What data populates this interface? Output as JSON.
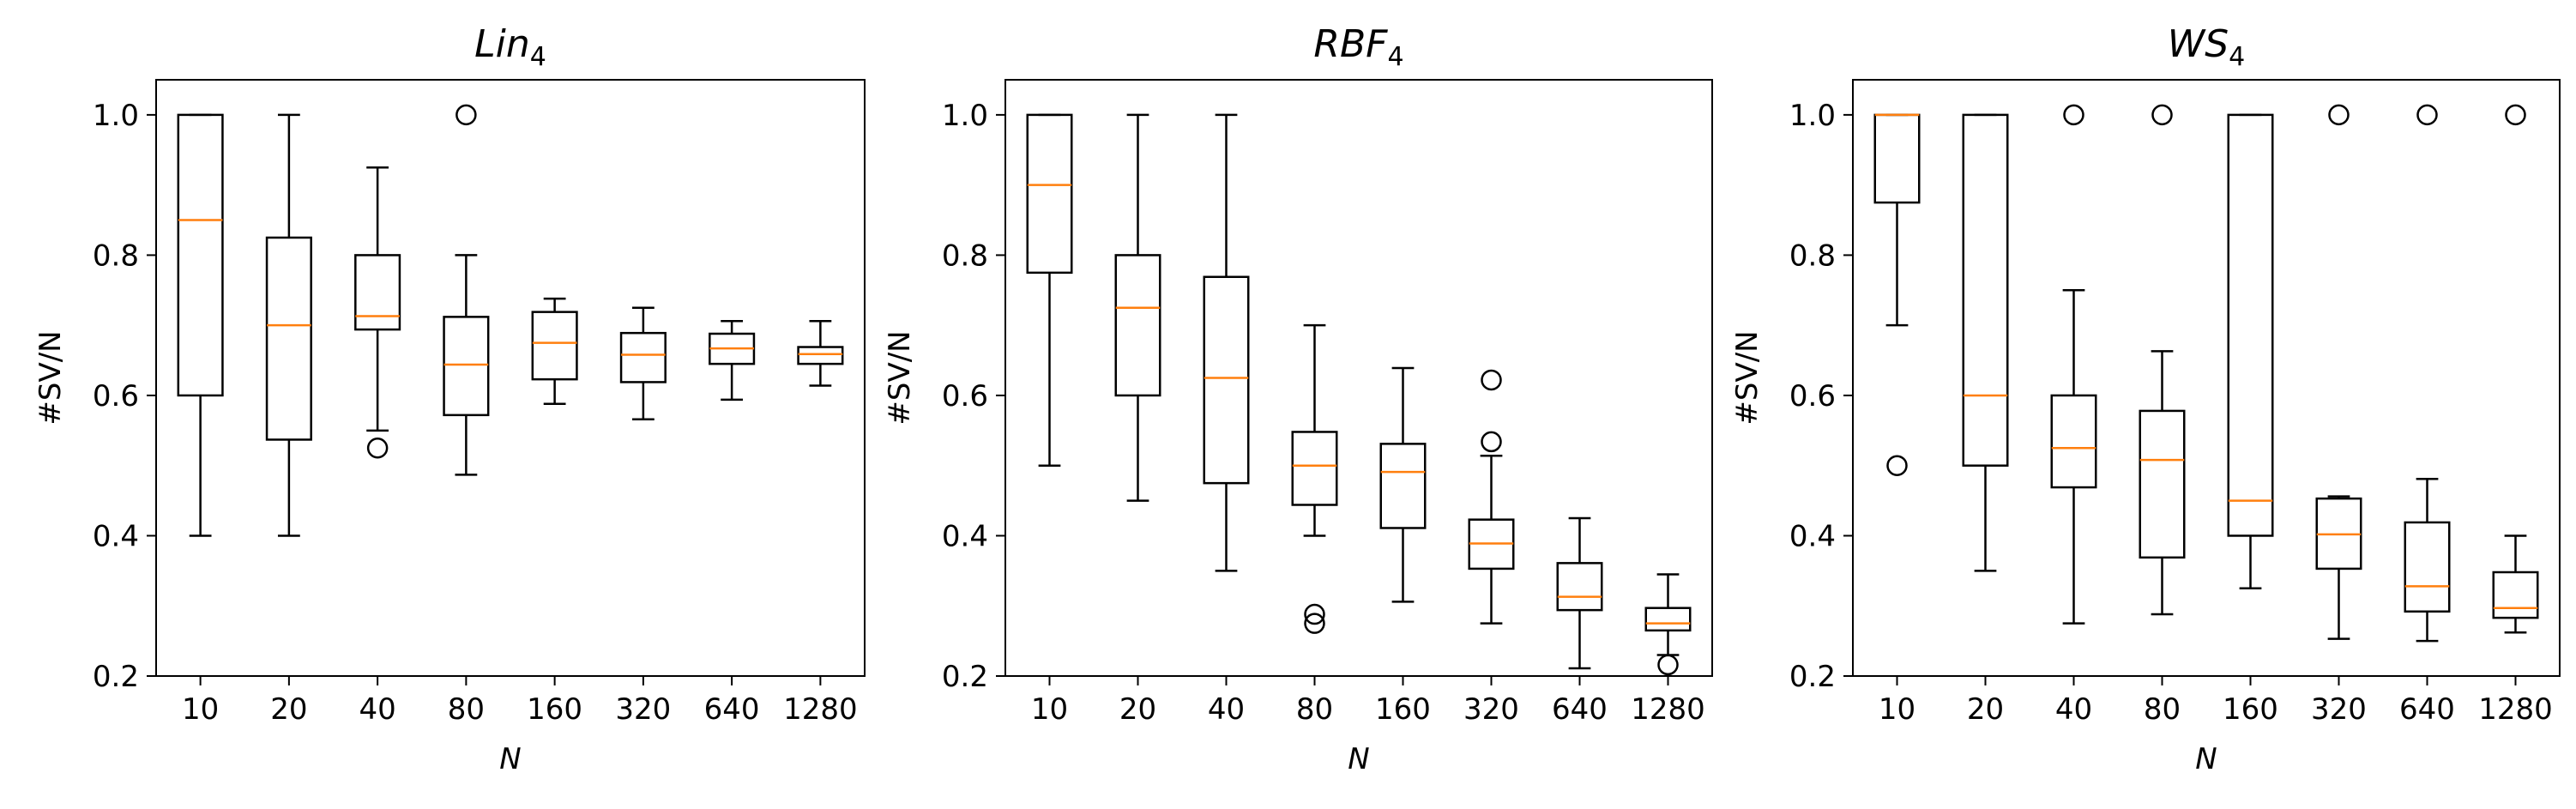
{
  "chart_data": [
    {
      "type": "box",
      "title": "Lin",
      "title_sub": "4",
      "xlabel": "N",
      "ylabel": "#SV/N",
      "ylim": [
        0.2,
        1.05
      ],
      "yticks": [
        "0.2",
        "0.4",
        "0.6",
        "0.8",
        "1.0"
      ],
      "categories": [
        "10",
        "20",
        "40",
        "80",
        "160",
        "320",
        "640",
        "1280"
      ],
      "boxes": [
        {
          "whislo": 0.4,
          "q1": 0.6,
          "med": 0.85,
          "q3": 1.0,
          "whishi": 1.0,
          "fliers": []
        },
        {
          "whislo": 0.4,
          "q1": 0.537,
          "med": 0.7,
          "q3": 0.825,
          "whishi": 1.0,
          "fliers": []
        },
        {
          "whislo": 0.55,
          "q1": 0.694,
          "med": 0.713,
          "q3": 0.8,
          "whishi": 0.925,
          "fliers": [
            0.525
          ]
        },
        {
          "whislo": 0.487,
          "q1": 0.572,
          "med": 0.644,
          "q3": 0.712,
          "whishi": 0.8,
          "fliers": [
            1.0
          ]
        },
        {
          "whislo": 0.588,
          "q1": 0.623,
          "med": 0.675,
          "q3": 0.719,
          "whishi": 0.738,
          "fliers": []
        },
        {
          "whislo": 0.566,
          "q1": 0.619,
          "med": 0.658,
          "q3": 0.689,
          "whishi": 0.725,
          "fliers": []
        },
        {
          "whislo": 0.594,
          "q1": 0.645,
          "med": 0.667,
          "q3": 0.688,
          "whishi": 0.706,
          "fliers": []
        },
        {
          "whislo": 0.614,
          "q1": 0.645,
          "med": 0.659,
          "q3": 0.669,
          "whishi": 0.706,
          "fliers": []
        }
      ]
    },
    {
      "type": "box",
      "title": "RBF",
      "title_sub": "4",
      "xlabel": "N",
      "ylabel": "#SV/N",
      "ylim": [
        0.2,
        1.05
      ],
      "yticks": [
        "0.2",
        "0.4",
        "0.6",
        "0.8",
        "1.0"
      ],
      "categories": [
        "10",
        "20",
        "40",
        "80",
        "160",
        "320",
        "640",
        "1280"
      ],
      "boxes": [
        {
          "whislo": 0.5,
          "q1": 0.775,
          "med": 0.9,
          "q3": 1.0,
          "whishi": 1.0,
          "fliers": []
        },
        {
          "whislo": 0.45,
          "q1": 0.6,
          "med": 0.725,
          "q3": 0.8,
          "whishi": 1.0,
          "fliers": []
        },
        {
          "whislo": 0.35,
          "q1": 0.475,
          "med": 0.625,
          "q3": 0.769,
          "whishi": 1.0,
          "fliers": []
        },
        {
          "whislo": 0.4,
          "q1": 0.444,
          "med": 0.5,
          "q3": 0.548,
          "whishi": 0.7,
          "fliers": [
            0.288,
            0.275
          ]
        },
        {
          "whislo": 0.306,
          "q1": 0.411,
          "med": 0.491,
          "q3": 0.531,
          "whishi": 0.639,
          "fliers": []
        },
        {
          "whislo": 0.275,
          "q1": 0.353,
          "med": 0.389,
          "q3": 0.423,
          "whishi": 0.514,
          "fliers": [
            0.622,
            0.534
          ]
        },
        {
          "whislo": 0.211,
          "q1": 0.294,
          "med": 0.313,
          "q3": 0.361,
          "whishi": 0.425,
          "fliers": []
        },
        {
          "whislo": 0.23,
          "q1": 0.265,
          "med": 0.275,
          "q3": 0.297,
          "whishi": 0.345,
          "fliers": [
            0.216
          ]
        }
      ]
    },
    {
      "type": "box",
      "title": "WS",
      "title_sub": "4",
      "xlabel": "N",
      "ylabel": "#SV/N",
      "ylim": [
        0.2,
        1.05
      ],
      "yticks": [
        "0.2",
        "0.4",
        "0.6",
        "0.8",
        "1.0"
      ],
      "categories": [
        "10",
        "20",
        "40",
        "80",
        "160",
        "320",
        "640",
        "1280"
      ],
      "boxes": [
        {
          "whislo": 0.7,
          "q1": 0.875,
          "med": 1.0,
          "q3": 1.0,
          "whishi": 1.0,
          "fliers": [
            0.5
          ]
        },
        {
          "whislo": 0.35,
          "q1": 0.5,
          "med": 0.6,
          "q3": 1.0,
          "whishi": 1.0,
          "fliers": []
        },
        {
          "whislo": 0.275,
          "q1": 0.469,
          "med": 0.525,
          "q3": 0.6,
          "whishi": 0.75,
          "fliers": [
            1.0
          ]
        },
        {
          "whislo": 0.288,
          "q1": 0.369,
          "med": 0.508,
          "q3": 0.578,
          "whishi": 0.663,
          "fliers": [
            1.0
          ]
        },
        {
          "whislo": 0.325,
          "q1": 0.4,
          "med": 0.45,
          "q3": 1.0,
          "whishi": 1.0,
          "fliers": []
        },
        {
          "whislo": 0.253,
          "q1": 0.353,
          "med": 0.402,
          "q3": 0.453,
          "whishi": 0.456,
          "fliers": [
            1.0
          ]
        },
        {
          "whislo": 0.25,
          "q1": 0.292,
          "med": 0.328,
          "q3": 0.419,
          "whishi": 0.481,
          "fliers": [
            1.0
          ]
        },
        {
          "whislo": 0.262,
          "q1": 0.283,
          "med": 0.297,
          "q3": 0.348,
          "whishi": 0.4,
          "fliers": [
            1.0
          ]
        }
      ]
    }
  ],
  "colors": {
    "box": "#000000",
    "median": "#ff7f0e",
    "background": "#ffffff"
  }
}
